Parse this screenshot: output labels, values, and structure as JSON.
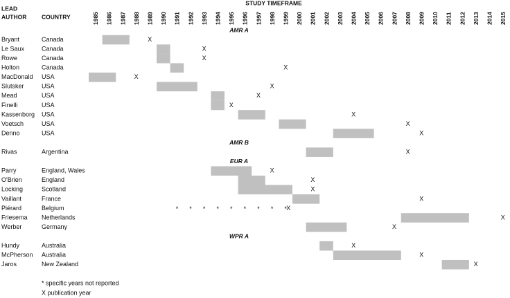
{
  "chart_data": {
    "type": "timeline",
    "title": "STUDY TIMEFRAME",
    "author_header": [
      "LEAD",
      "AUTHOR"
    ],
    "country_header": "COUNTRY",
    "xlim": [
      1985,
      2016
    ],
    "xticks": [
      1985,
      1986,
      1987,
      1988,
      1989,
      1990,
      1991,
      1992,
      1993,
      1994,
      1995,
      1996,
      1997,
      1998,
      1999,
      2000,
      2001,
      2002,
      2003,
      2004,
      2005,
      2006,
      2007,
      2008,
      2009,
      2010,
      2011,
      2012,
      2013,
      2014,
      2015
    ],
    "bar_color": "#c0c0c0",
    "publication_symbol": "X",
    "unreported_symbol": "*",
    "groups": [
      {
        "name": "AMR A",
        "studies": [
          {
            "author": "Bryant",
            "country": "Canada",
            "start": 1986,
            "end": 1987,
            "published": 1989
          },
          {
            "author": "Le Saux",
            "country": "Canada",
            "start": 1990,
            "end": 1990,
            "published": 1993
          },
          {
            "author": "Rowe",
            "country": "Canada",
            "start": 1990,
            "end": 1990,
            "published": 1993
          },
          {
            "author": "Holton",
            "country": "Canada",
            "start": 1991,
            "end": 1991,
            "published": 1999
          },
          {
            "author": "MacDonald",
            "country": "USA",
            "start": 1985,
            "end": 1986,
            "published": 1988
          },
          {
            "author": "Slutsker",
            "country": "USA",
            "start": 1990,
            "end": 1992,
            "published": 1998
          },
          {
            "author": "Mead",
            "country": "USA",
            "start": 1994,
            "end": 1994,
            "published": 1997
          },
          {
            "author": "Finelli",
            "country": "USA",
            "start": 1994,
            "end": 1994,
            "published": 1995
          },
          {
            "author": "Kassenborg",
            "country": "USA",
            "start": 1996,
            "end": 1997,
            "published": 2004
          },
          {
            "author": "Voetsch",
            "country": "USA",
            "start": 1999,
            "end": 2000,
            "published": 2008
          },
          {
            "author": "Denno",
            "country": "USA",
            "start": 2003,
            "end": 2005,
            "published": 2009
          }
        ]
      },
      {
        "name": "AMR B",
        "studies": [
          {
            "author": "Rivas",
            "country": "Argentina",
            "start": 2001,
            "end": 2002,
            "published": 2008
          }
        ]
      },
      {
        "name": "EUR A",
        "studies": [
          {
            "author": "Parry",
            "country": "England, Wales",
            "start": 1994,
            "end": 1996,
            "published": 1998
          },
          {
            "author": "O'Brien",
            "country": "England",
            "start": 1996,
            "end": 1997,
            "published": 2001
          },
          {
            "author": "Locking",
            "country": "Scotland",
            "start": 1996,
            "end": 1999,
            "published": 2001
          },
          {
            "author": "Vaillant",
            "country": "France",
            "start": 2000,
            "end": 2001,
            "published": 2009
          },
          {
            "author": "Piérard",
            "country": "Belgium",
            "unreported_years": [
              1991,
              1992,
              1993,
              1994,
              1995,
              1996,
              1997,
              1998,
              1999
            ],
            "published": 1999
          },
          {
            "author": "Friesema",
            "country": "Netherlands",
            "start": 2008,
            "end": 2012,
            "published": 2015
          },
          {
            "author": "Werber",
            "country": "Germany",
            "start": 2001,
            "end": 2003,
            "published": 2007
          }
        ]
      },
      {
        "name": "WPR A",
        "studies": [
          {
            "author": "Hundy",
            "country": "Australia",
            "start": 2002,
            "end": 2002,
            "published": 2004
          },
          {
            "author": "McPherson",
            "country": "Australia",
            "start": 2003,
            "end": 2007,
            "published": 2009
          },
          {
            "author": "Jaros",
            "country": "New Zealand",
            "start": 2011,
            "end": 2012,
            "published": 2013
          }
        ]
      }
    ],
    "notes": [
      "* specific years not reported",
      "X publication year"
    ]
  }
}
